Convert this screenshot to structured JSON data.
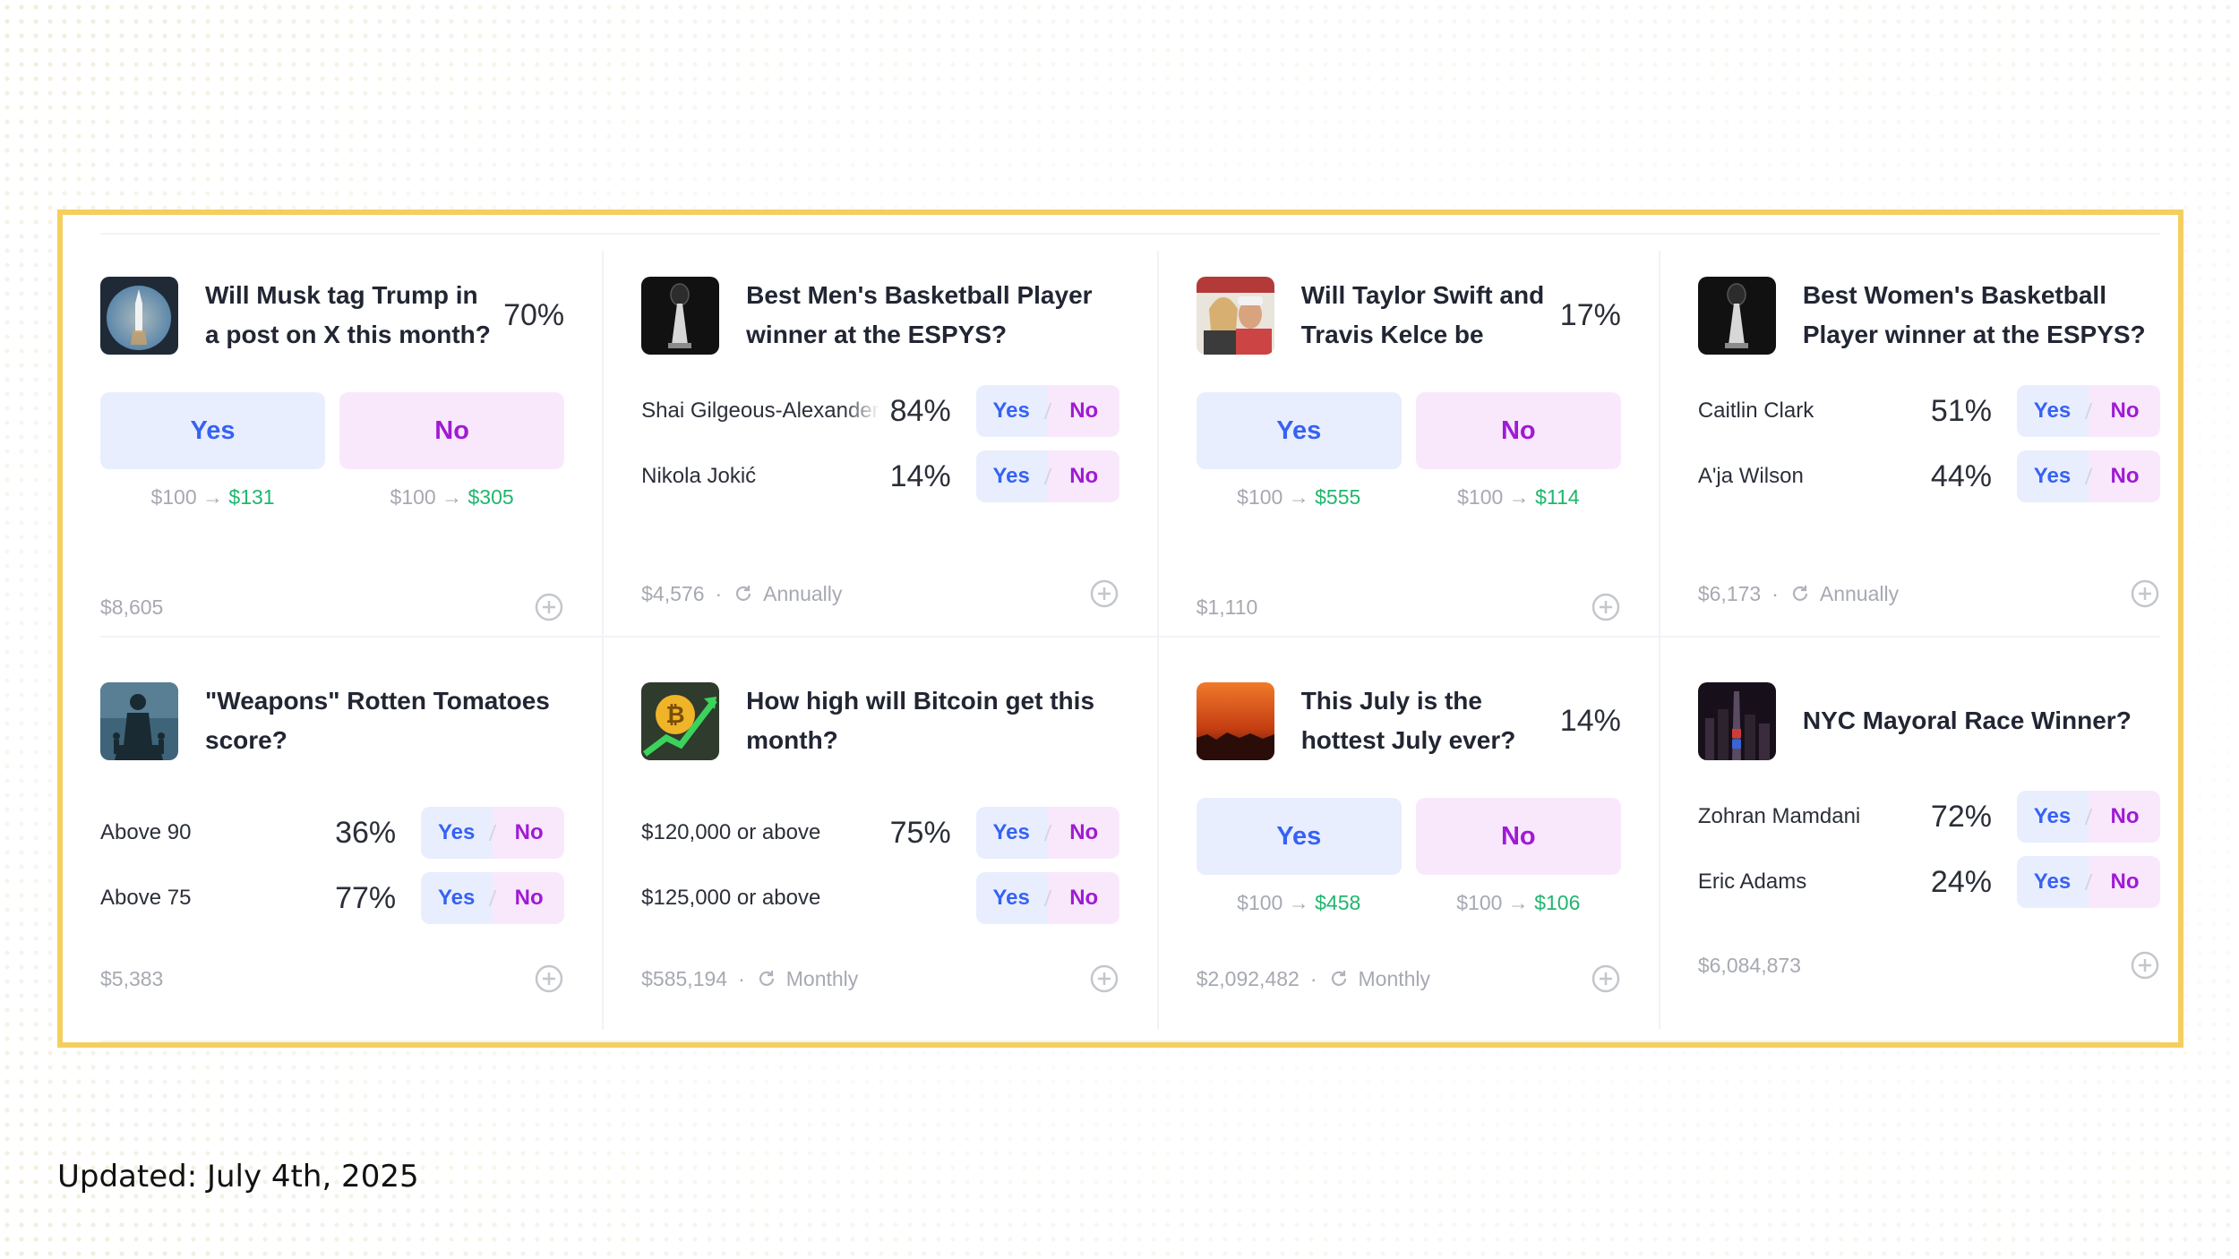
{
  "updated": "Updated: July 4th, 2025",
  "colors": {
    "frame": "#f4cf60",
    "yes": "#3662f3",
    "no": "#a01ad4",
    "win": "#20b66e"
  },
  "cards": [
    {
      "title": "Will Musk tag Trump in a post on X this month?",
      "thumb": "rocket-launch-photo",
      "percent": "70%",
      "yes": "Yes",
      "no": "No",
      "yes_stake": "$100",
      "yes_payout": "$131",
      "no_stake": "$100",
      "no_payout": "$305",
      "volume": "$8,605"
    },
    {
      "title": "Best Men's Basketball Player winner at the ESPYS?",
      "thumb": "espy-trophy-photo",
      "outcomes": [
        {
          "name": "Shai Gilgeous-Alexander",
          "pct": "84%",
          "yes": "Yes",
          "no": "No"
        },
        {
          "name": "Nikola Jokić",
          "pct": "14%",
          "yes": "Yes",
          "no": "No"
        }
      ],
      "volume": "$4,576",
      "recurrence": "Annually"
    },
    {
      "title": "Will Taylor Swift and Travis Kelce be marri...",
      "thumb": "couple-photo",
      "percent": "17%",
      "yes": "Yes",
      "no": "No",
      "yes_stake": "$100",
      "yes_payout": "$555",
      "no_stake": "$100",
      "no_payout": "$114",
      "volume": "$1,110"
    },
    {
      "title": "Best Women's Basketball Player winner at the ESPYS?",
      "thumb": "espy-trophy-photo",
      "outcomes": [
        {
          "name": "Caitlin Clark",
          "pct": "51%",
          "yes": "Yes",
          "no": "No"
        },
        {
          "name": "A'ja Wilson",
          "pct": "44%",
          "yes": "Yes",
          "no": "No"
        }
      ],
      "volume": "$6,173",
      "recurrence": "Annually"
    },
    {
      "title": "\"Weapons\" Rotten Tomatoes score?",
      "thumb": "movie-poster-photo",
      "outcomes": [
        {
          "name": "Above 90",
          "pct": "36%",
          "yes": "Yes",
          "no": "No"
        },
        {
          "name": "Above 75",
          "pct": "77%",
          "yes": "Yes",
          "no": "No"
        }
      ],
      "volume": "$5,383"
    },
    {
      "title": "How high will Bitcoin get this month?",
      "thumb": "bitcoin-chart-photo",
      "outcomes": [
        {
          "name": "$120,000 or above",
          "pct": "75%",
          "yes": "Yes",
          "no": "No"
        },
        {
          "name": "$125,000 or above",
          "pct": "",
          "yes": "Yes",
          "no": "No"
        }
      ],
      "volume": "$585,194",
      "recurrence": "Monthly"
    },
    {
      "title": "This July is the hottest July ever?",
      "thumb": "hot-sky-photo",
      "percent": "14%",
      "yes": "Yes",
      "no": "No",
      "yes_stake": "$100",
      "yes_payout": "$458",
      "no_stake": "$100",
      "no_payout": "$106",
      "volume": "$2,092,482",
      "recurrence": "Monthly"
    },
    {
      "title": "NYC Mayoral Race Winner?",
      "thumb": "nyc-night-photo",
      "outcomes": [
        {
          "name": "Zohran Mamdani",
          "pct": "72%",
          "yes": "Yes",
          "no": "No"
        },
        {
          "name": "Eric Adams",
          "pct": "24%",
          "yes": "Yes",
          "no": "No"
        }
      ],
      "volume": "$6,084,873"
    }
  ]
}
